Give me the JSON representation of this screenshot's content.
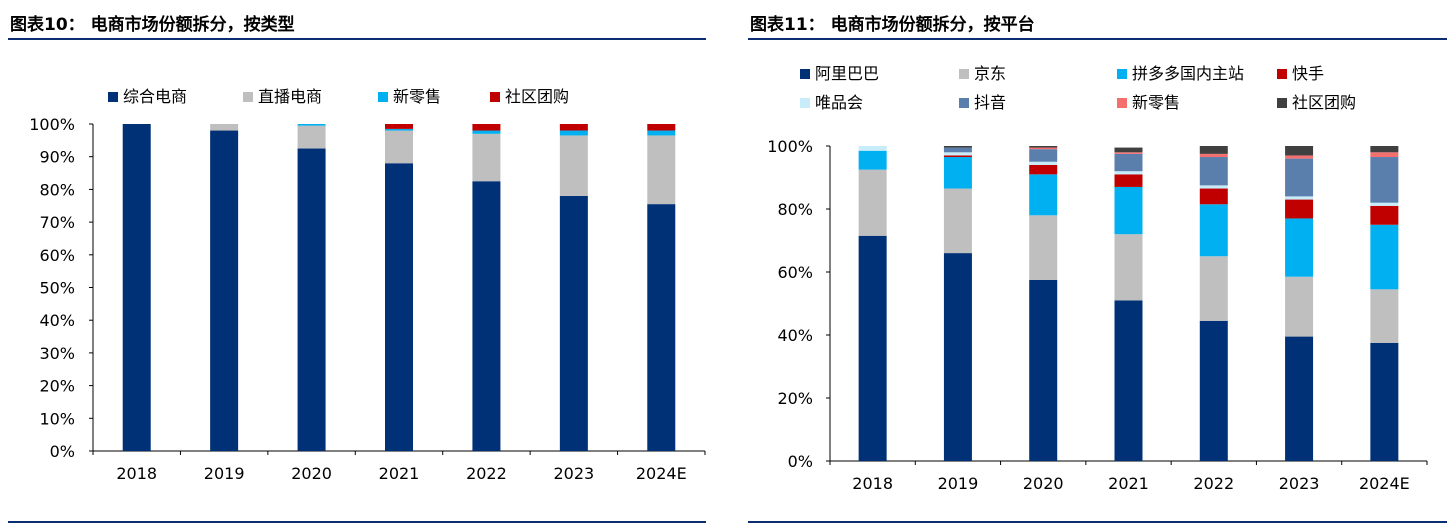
{
  "charts": [
    {
      "fig_title": "图表10： 电商市场份额拆分，按类型",
      "legend": [
        {
          "name": "综合电商",
          "color": "#003177"
        },
        {
          "name": "直播电商",
          "color": "#bfbfbf"
        },
        {
          "name": "新零售",
          "color": "#00b0f0"
        },
        {
          "name": "社区团购",
          "color": "#c00000"
        }
      ]
    },
    {
      "fig_title": "图表11： 电商市场份额拆分，按平台",
      "legend": [
        {
          "name": "阿里巴巴",
          "color": "#003177"
        },
        {
          "name": "京东",
          "color": "#bfbfbf"
        },
        {
          "name": "拼多多国内主站",
          "color": "#00b0f0"
        },
        {
          "name": "快手",
          "color": "#c00000"
        },
        {
          "name": "唯品会",
          "color": "#c9ecfa"
        },
        {
          "name": "抖音",
          "color": "#5b7fad"
        },
        {
          "name": "新零售",
          "color": "#f4706f"
        },
        {
          "name": "社区团购",
          "color": "#404040"
        }
      ]
    }
  ],
  "chart_data": [
    {
      "type": "bar",
      "stacked": true,
      "title": "图表10： 电商市场份额拆分，按类型",
      "categories": [
        "2018",
        "2019",
        "2020",
        "2021",
        "2022",
        "2023",
        "2024E"
      ],
      "ylim": [
        0,
        100
      ],
      "yticks": [
        0,
        10,
        20,
        30,
        40,
        50,
        60,
        70,
        80,
        90,
        100
      ],
      "ytick_labels": [
        "0%",
        "10%",
        "20%",
        "30%",
        "40%",
        "50%",
        "60%",
        "70%",
        "80%",
        "90%",
        "100%"
      ],
      "legend_position": "top",
      "series": [
        {
          "name": "综合电商",
          "color": "#003177",
          "values": [
            100,
            98,
            92.5,
            88,
            82.5,
            78,
            75.5
          ]
        },
        {
          "name": "直播电商",
          "color": "#bfbfbf",
          "values": [
            0,
            2,
            7,
            10,
            14.5,
            18.5,
            21
          ]
        },
        {
          "name": "新零售",
          "color": "#00b0f0",
          "values": [
            0,
            0,
            0.5,
            0.5,
            1,
            1.5,
            1.5
          ]
        },
        {
          "name": "社区团购",
          "color": "#c00000",
          "values": [
            0,
            0,
            0,
            1.5,
            2,
            2,
            2
          ]
        }
      ]
    },
    {
      "type": "bar",
      "stacked": true,
      "title": "图表11： 电商市场份额拆分，按平台",
      "categories": [
        "2018",
        "2019",
        "2020",
        "2021",
        "2022",
        "2023",
        "2024E"
      ],
      "ylim": [
        0,
        100
      ],
      "yticks": [
        0,
        20,
        40,
        60,
        80,
        100
      ],
      "ytick_labels": [
        "0%",
        "20%",
        "40%",
        "60%",
        "80%",
        "100%"
      ],
      "legend_position": "top",
      "series": [
        {
          "name": "阿里巴巴",
          "color": "#003177",
          "values": [
            71.5,
            66,
            57.5,
            51,
            44.5,
            39.5,
            37.5
          ]
        },
        {
          "name": "京东",
          "color": "#bfbfbf",
          "values": [
            21,
            20.5,
            20.5,
            21,
            20.5,
            19,
            17
          ]
        },
        {
          "name": "拼多多国内主站",
          "color": "#00b0f0",
          "values": [
            6,
            10,
            13,
            15,
            16.5,
            18.5,
            20.5
          ]
        },
        {
          "name": "快手",
          "color": "#c00000",
          "values": [
            0,
            0.5,
            3,
            4,
            5,
            6,
            6
          ]
        },
        {
          "name": "唯品会",
          "color": "#c9ecfa",
          "values": [
            1.5,
            1,
            1,
            1,
            1,
            1,
            1
          ]
        },
        {
          "name": "抖音",
          "color": "#5b7fad",
          "values": [
            0,
            1.5,
            4,
            5.5,
            9,
            12,
            14.5
          ]
        },
        {
          "name": "新零售",
          "color": "#f4706f",
          "values": [
            0,
            0,
            0.5,
            0.5,
            1,
            1,
            1.5
          ]
        },
        {
          "name": "社区团购",
          "color": "#404040",
          "values": [
            0,
            0.5,
            0.5,
            1.5,
            2.5,
            3,
            2
          ]
        }
      ]
    }
  ]
}
